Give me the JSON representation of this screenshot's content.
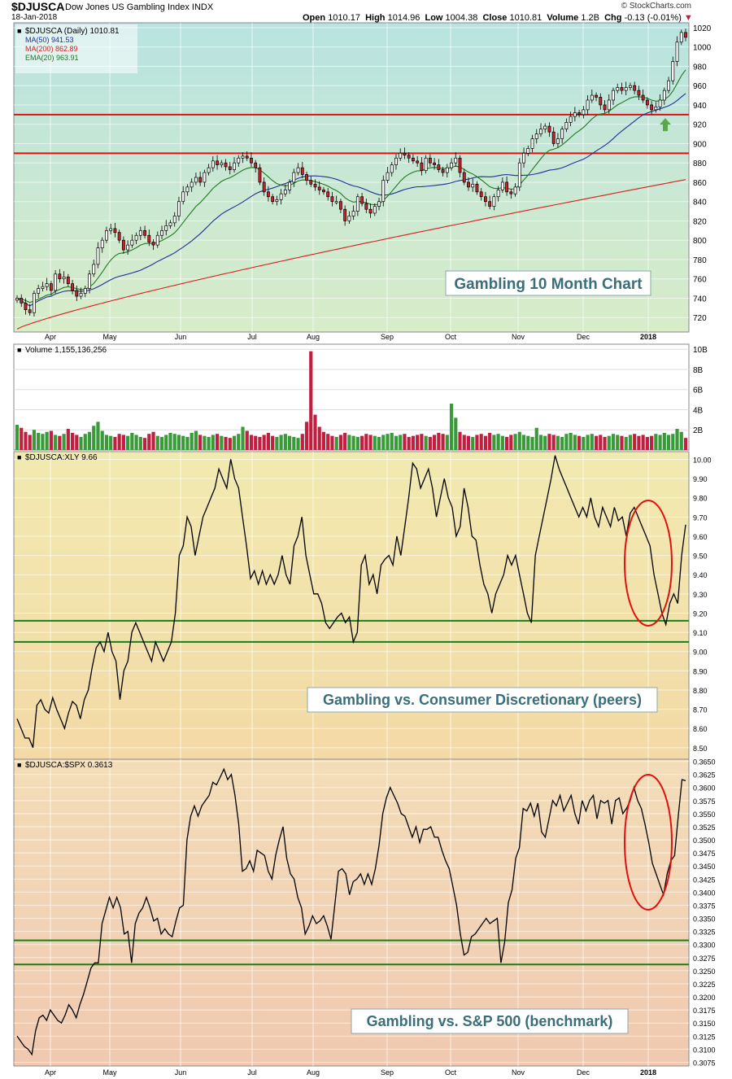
{
  "header": {
    "symbol": "$DJUSCA",
    "name": "Dow Jones US Gambling Index",
    "exchange": "INDX",
    "date": "18-Jan-2018",
    "open_label": "Open",
    "open": "1010.17",
    "high_label": "High",
    "high": "1014.96",
    "low_label": "Low",
    "low": "1004.38",
    "close_label": "Close",
    "close": "1010.81",
    "volume_label": "Volume",
    "volume": "1.2B",
    "chg_label": "Chg",
    "chg": "-0.13 (-0.01%)",
    "credit": "© StockCharts.com"
  },
  "colors": {
    "price_bg": "#cde9d3",
    "ratio1_bg": "#f3e8b6",
    "ratio2_bg": "#f3d6b3",
    "up_candle": "#ffffff",
    "down_candle": "#d0202a",
    "ma50": "#1f2f9a",
    "ma200": "#d62020",
    "ema20": "#1e7a1e",
    "hline_red": "#e01010",
    "hline_green": "#1a7f1a",
    "vol_up": "#3a9a3a",
    "vol_down": "#c02040",
    "circle": "#e01010",
    "callout_text": "#3a6e7a"
  },
  "chart_data": [
    {
      "type": "line",
      "panel": "price",
      "title": "$DJUSCA (Daily) 1010.81",
      "series_style": "candlestick",
      "legend": [
        {
          "name": "$DJUSCA (Daily) 1010.81"
        },
        {
          "name": "MA(50) 941.53"
        },
        {
          "name": "MA(200) 862.89"
        },
        {
          "name": "EMA(20) 963.91"
        }
      ],
      "x_tick_labels": [
        "Apr",
        "May",
        "Jun",
        "Jul",
        "Aug",
        "Sep",
        "Oct",
        "Nov",
        "Dec",
        "2018"
      ],
      "y_tick_labels": [
        "720",
        "740",
        "760",
        "780",
        "800",
        "820",
        "840",
        "860",
        "880",
        "900",
        "920",
        "940",
        "960",
        "980",
        "1000",
        "1020"
      ],
      "ylim": [
        705,
        1025
      ],
      "horizontal_lines": [
        930,
        890
      ],
      "annotation": "Gambling 10 Month Chart",
      "close": [
        740,
        735,
        728,
        725,
        745,
        750,
        752,
        755,
        748,
        765,
        760,
        762,
        755,
        748,
        742,
        745,
        750,
        765,
        775,
        792,
        800,
        810,
        812,
        808,
        800,
        790,
        795,
        800,
        805,
        810,
        805,
        798,
        795,
        805,
        810,
        815,
        818,
        825,
        840,
        850,
        855,
        860,
        865,
        860,
        870,
        875,
        882,
        878,
        880,
        876,
        873,
        880,
        885,
        887,
        885,
        880,
        875,
        860,
        850,
        845,
        840,
        842,
        848,
        852,
        860,
        870,
        875,
        868,
        862,
        858,
        855,
        852,
        850,
        845,
        840,
        840,
        832,
        820,
        825,
        830,
        845,
        838,
        832,
        828,
        835,
        840,
        862,
        870,
        878,
        885,
        890,
        888,
        885,
        882,
        880,
        872,
        885,
        880,
        878,
        873,
        870,
        875,
        880,
        885,
        870,
        860,
        855,
        858,
        850,
        845,
        840,
        835,
        845,
        852,
        860,
        850,
        848,
        855,
        880,
        890,
        895,
        905,
        910,
        915,
        918,
        912,
        900,
        905,
        915,
        922,
        928,
        932,
        930,
        935,
        945,
        950,
        948,
        940,
        935,
        945,
        955,
        958,
        955,
        958,
        960,
        955,
        950,
        945,
        940,
        935,
        938,
        945,
        955,
        965,
        985,
        1005,
        1015,
        1010
      ]
    },
    {
      "type": "bar",
      "panel": "volume",
      "title": "Volume 1,155,136,256",
      "y_tick_labels": [
        "2B",
        "4B",
        "6B",
        "8B",
        "10B"
      ],
      "ylim": [
        0,
        10.5
      ],
      "values_billions": [
        2.5,
        2.2,
        1.8,
        1.5,
        2.0,
        1.7,
        1.6,
        1.8,
        1.9,
        1.5,
        1.4,
        1.6,
        2.1,
        1.7,
        1.5,
        1.3,
        1.6,
        1.8,
        2.4,
        2.8,
        1.9,
        1.5,
        1.4,
        1.3,
        1.6,
        1.5,
        1.4,
        1.7,
        1.5,
        1.3,
        1.2,
        1.6,
        1.8,
        1.4,
        1.3,
        1.5,
        1.7,
        1.6,
        1.5,
        1.4,
        1.3,
        1.7,
        1.9,
        1.5,
        1.4,
        1.3,
        1.5,
        1.6,
        1.4,
        1.3,
        1.2,
        1.4,
        1.6,
        2.3,
        1.9,
        1.5,
        1.4,
        1.3,
        1.5,
        1.7,
        1.4,
        1.3,
        1.5,
        1.6,
        1.4,
        1.3,
        1.2,
        1.6,
        2.8,
        9.8,
        3.5,
        2.3,
        1.8,
        1.6,
        1.4,
        1.3,
        1.5,
        1.7,
        1.5,
        1.4,
        1.3,
        1.4,
        1.6,
        1.5,
        1.4,
        1.3,
        1.5,
        1.6,
        1.7,
        1.4,
        1.5,
        1.6,
        1.3,
        1.4,
        1.5,
        1.6,
        1.4,
        1.3,
        1.5,
        1.7,
        1.6,
        1.5,
        4.6,
        3.2,
        1.8,
        1.5,
        1.4,
        1.3,
        1.5,
        1.6,
        1.4,
        1.7,
        1.5,
        1.6,
        1.4,
        1.3,
        1.5,
        1.6,
        1.8,
        1.5,
        1.4,
        1.3,
        2.2,
        1.5,
        1.4,
        1.6,
        1.5,
        1.4,
        1.3,
        1.6,
        1.7,
        1.5,
        1.4,
        1.3,
        1.5,
        1.6,
        1.4,
        1.5,
        1.3,
        1.4,
        1.6,
        1.5,
        1.4,
        1.3,
        1.5,
        1.6,
        1.4,
        1.5,
        1.3,
        1.4,
        1.6,
        1.5,
        1.7,
        1.5,
        1.6,
        2.1,
        1.8,
        1.2
      ]
    },
    {
      "type": "line",
      "panel": "ratio1",
      "title": "$DJUSCA:XLY 9.66",
      "y_tick_labels": [
        "8.50",
        "8.60",
        "8.70",
        "8.80",
        "8.90",
        "9.00",
        "9.10",
        "9.20",
        "9.30",
        "9.40",
        "9.50",
        "9.60",
        "9.70",
        "9.80",
        "9.90",
        "10.00"
      ],
      "ylim": [
        8.44,
        10.04
      ],
      "horizontal_lines": [
        9.16,
        9.05
      ],
      "annotation": "Gambling vs. Consumer Discretionary (peers)",
      "values": [
        8.65,
        8.6,
        8.55,
        8.55,
        8.5,
        8.72,
        8.75,
        8.7,
        8.68,
        8.76,
        8.7,
        8.65,
        8.6,
        8.68,
        8.74,
        8.72,
        8.65,
        8.75,
        8.8,
        8.92,
        9.02,
        9.05,
        9.0,
        9.1,
        9.0,
        8.95,
        8.75,
        8.9,
        8.95,
        9.1,
        9.15,
        9.1,
        9.05,
        9.0,
        8.95,
        9.05,
        9.0,
        8.95,
        9.0,
        9.05,
        9.2,
        9.5,
        9.55,
        9.7,
        9.65,
        9.5,
        9.6,
        9.7,
        9.75,
        9.8,
        9.85,
        9.95,
        9.9,
        9.85,
        10.0,
        9.9,
        9.85,
        9.7,
        9.55,
        9.38,
        9.42,
        9.35,
        9.42,
        9.35,
        9.4,
        9.35,
        9.4,
        9.5,
        9.4,
        9.35,
        9.55,
        9.6,
        9.7,
        9.5,
        9.4,
        9.3,
        9.3,
        9.25,
        9.15,
        9.12,
        9.15,
        9.18,
        9.2,
        9.15,
        9.18,
        9.05,
        9.1,
        9.45,
        9.5,
        9.35,
        9.4,
        9.3,
        9.45,
        9.48,
        9.5,
        9.45,
        9.6,
        9.5,
        9.65,
        9.8,
        9.98,
        9.95,
        9.85,
        9.9,
        9.95,
        9.85,
        9.7,
        9.8,
        9.9,
        9.8,
        9.75,
        9.6,
        9.65,
        9.85,
        9.75,
        9.6,
        9.58,
        9.45,
        9.35,
        9.3,
        9.2,
        9.3,
        9.35,
        9.4,
        9.5,
        9.45,
        9.5,
        9.4,
        9.3,
        9.2,
        9.15,
        9.5,
        9.6,
        9.7,
        9.8,
        9.9,
        10.02,
        9.95,
        9.9,
        9.85,
        9.8,
        9.75,
        9.7,
        9.75,
        9.7,
        9.8,
        9.7,
        9.65,
        9.75,
        9.7,
        9.65,
        9.75,
        9.68,
        9.7,
        9.6,
        9.72,
        9.75,
        9.7,
        9.65,
        9.6,
        9.55,
        9.4,
        9.3,
        9.2,
        9.14,
        9.25,
        9.3,
        9.25,
        9.5,
        9.66
      ]
    },
    {
      "type": "line",
      "panel": "ratio2",
      "title": "$DJUSCA:$SPX 0.3613",
      "y_tick_labels": [
        "0.3075",
        "0.3100",
        "0.3125",
        "0.3150",
        "0.3175",
        "0.3200",
        "0.3225",
        "0.3250",
        "0.3275",
        "0.3300",
        "0.3325",
        "0.3350",
        "0.3375",
        "0.3400",
        "0.3425",
        "0.3450",
        "0.3475",
        "0.3500",
        "0.3525",
        "0.3550",
        "0.3575",
        "0.3600",
        "0.3625",
        "0.3650"
      ],
      "ylim": [
        0.3068,
        0.3654
      ],
      "horizontal_lines": [
        0.3308,
        0.3262
      ],
      "annotation": "Gambling vs. S&P 500 (benchmark)",
      "values": [
        0.3125,
        0.3115,
        0.3105,
        0.31,
        0.309,
        0.3135,
        0.316,
        0.3165,
        0.3155,
        0.3175,
        0.3165,
        0.3155,
        0.315,
        0.3165,
        0.3185,
        0.3175,
        0.316,
        0.3185,
        0.3205,
        0.323,
        0.3255,
        0.3265,
        0.3265,
        0.334,
        0.3365,
        0.339,
        0.337,
        0.339,
        0.337,
        0.332,
        0.3325,
        0.3265,
        0.334,
        0.336,
        0.337,
        0.339,
        0.337,
        0.3345,
        0.335,
        0.332,
        0.333,
        0.332,
        0.3315,
        0.3345,
        0.337,
        0.3375,
        0.35,
        0.3545,
        0.3565,
        0.3545,
        0.3565,
        0.3575,
        0.3585,
        0.361,
        0.3605,
        0.362,
        0.3635,
        0.3615,
        0.3625,
        0.3585,
        0.353,
        0.344,
        0.3445,
        0.346,
        0.344,
        0.348,
        0.3475,
        0.347,
        0.344,
        0.3425,
        0.347,
        0.35,
        0.3525,
        0.3465,
        0.3435,
        0.3425,
        0.339,
        0.337,
        0.332,
        0.3335,
        0.3355,
        0.334,
        0.3345,
        0.3355,
        0.3335,
        0.331,
        0.3375,
        0.344,
        0.3445,
        0.3435,
        0.3395,
        0.342,
        0.3425,
        0.3435,
        0.3415,
        0.3435,
        0.3415,
        0.3445,
        0.349,
        0.355,
        0.358,
        0.36,
        0.3585,
        0.357,
        0.355,
        0.3545,
        0.3525,
        0.3505,
        0.3525,
        0.3495,
        0.352,
        0.352,
        0.3525,
        0.3505,
        0.3505,
        0.348,
        0.346,
        0.3445,
        0.341,
        0.3375,
        0.332,
        0.328,
        0.3285,
        0.3315,
        0.332,
        0.333,
        0.334,
        0.335,
        0.334,
        0.3345,
        0.335,
        0.3265,
        0.3305,
        0.338,
        0.3405,
        0.3465,
        0.3485,
        0.356,
        0.3555,
        0.357,
        0.3545,
        0.357,
        0.3515,
        0.3505,
        0.354,
        0.3575,
        0.3565,
        0.3585,
        0.3555,
        0.357,
        0.3585,
        0.355,
        0.353,
        0.3575,
        0.3555,
        0.3575,
        0.3585,
        0.354,
        0.3575,
        0.357,
        0.3575,
        0.353,
        0.3575,
        0.358,
        0.355,
        0.356,
        0.3575,
        0.36,
        0.3575,
        0.356,
        0.353,
        0.3495,
        0.3455,
        0.3435,
        0.3415,
        0.3395,
        0.3435,
        0.346,
        0.347,
        0.3545,
        0.3615,
        0.3613
      ]
    }
  ]
}
